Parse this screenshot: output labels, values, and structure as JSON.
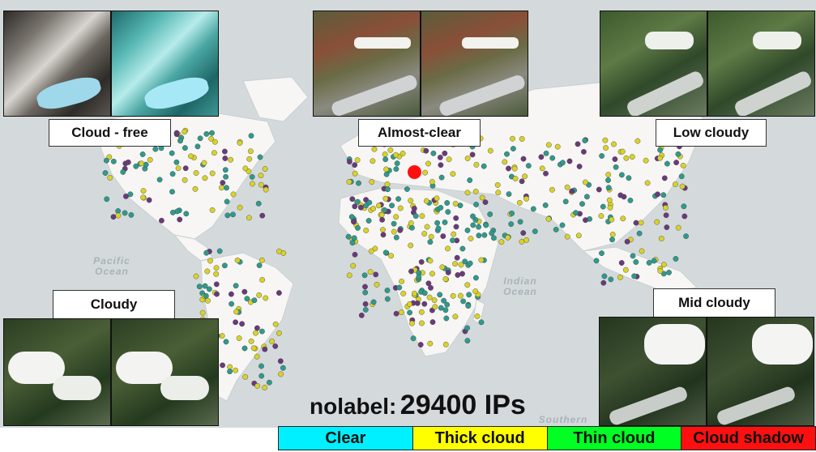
{
  "map": {
    "ocean_labels": [
      "Pacific Ocean",
      "Indian Ocean",
      "Southern"
    ],
    "colors": {
      "ocean": "#d4dadc",
      "land": "#f7f6f4",
      "point_thick": "#d9d22a",
      "point_teal": "#2f9a8c",
      "point_purple": "#6a3a7a",
      "marker": "#ff1010"
    }
  },
  "panels": [
    {
      "caption": "Cloud - free",
      "theme": "snowy"
    },
    {
      "caption": "Almost-clear",
      "theme": "clear"
    },
    {
      "caption": "Low cloudy",
      "theme": "low"
    },
    {
      "caption": "Cloudy",
      "theme": "cloudy"
    },
    {
      "caption": "Mid cloudy",
      "theme": "mid"
    }
  ],
  "summary": {
    "label": "nolabel:",
    "value": "29400 IPs"
  },
  "legend": [
    {
      "label": "Clear",
      "color": "#00f0ff"
    },
    {
      "label": "Thick cloud",
      "color": "#ffff00"
    },
    {
      "label": "Thin cloud",
      "color": "#00ff22"
    },
    {
      "label": "Cloud shadow",
      "color": "#ff1010"
    }
  ]
}
